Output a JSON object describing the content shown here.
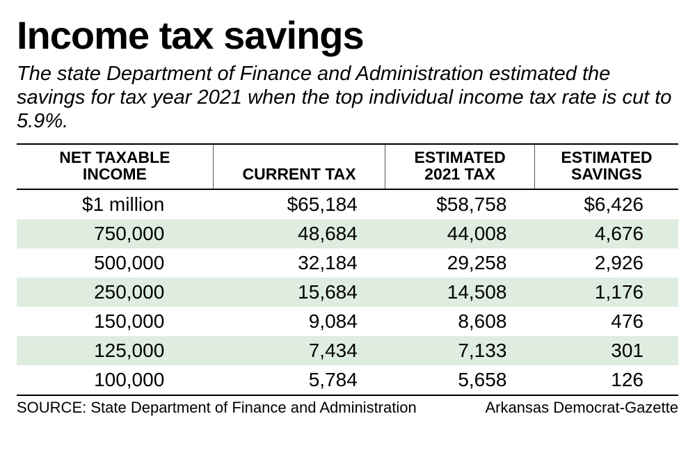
{
  "title": "Income tax savings",
  "subtitle": "The state Department of Finance and Administration estimated the savings for tax year 2021 when the top individual income tax rate is cut to 5.9%.",
  "table": {
    "type": "table",
    "background_color": "#ffffff",
    "stripe_color": "#dfece0",
    "border_color": "#000000",
    "header_fontsize": 23,
    "cell_fontsize": 28,
    "columns": [
      {
        "line1": "NET TAXABLE",
        "line2": "INCOME",
        "align": "right"
      },
      {
        "line1": "",
        "line2": "CURRENT TAX",
        "align": "right"
      },
      {
        "line1": "ESTIMATED",
        "line2": "2021 TAX",
        "align": "right"
      },
      {
        "line1": "ESTIMATED",
        "line2": "SAVINGS",
        "align": "right"
      }
    ],
    "rows": [
      {
        "stripe": false,
        "cells": [
          "$1 million",
          "$65,184",
          "$58,758",
          "$6,426"
        ]
      },
      {
        "stripe": true,
        "cells": [
          "750,000",
          "48,684",
          "44,008",
          "4,676"
        ]
      },
      {
        "stripe": false,
        "cells": [
          "500,000",
          "32,184",
          "29,258",
          "2,926"
        ]
      },
      {
        "stripe": true,
        "cells": [
          "250,000",
          "15,684",
          "14,508",
          "1,176"
        ]
      },
      {
        "stripe": false,
        "cells": [
          "150,000",
          "9,084",
          "8,608",
          "476"
        ]
      },
      {
        "stripe": true,
        "cells": [
          "125,000",
          "7,434",
          "7,133",
          "301"
        ]
      },
      {
        "stripe": false,
        "cells": [
          "100,000",
          "5,784",
          "5,658",
          "126"
        ]
      }
    ]
  },
  "footer": {
    "source": "SOURCE: State Department of Finance and Administration",
    "credit": "Arkansas Democrat-Gazette"
  }
}
